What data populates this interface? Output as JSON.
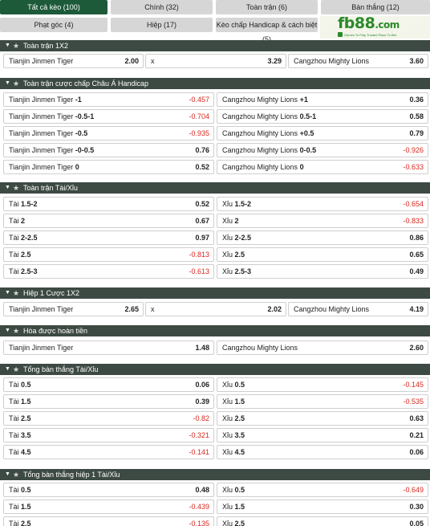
{
  "tabs": [
    {
      "label": "Tất cả kèo (100)",
      "active": true
    },
    {
      "label": "Chính (32)",
      "active": false
    },
    {
      "label": "Toàn trận (6)",
      "active": false
    },
    {
      "label": "Bàn thắng (12)",
      "active": false
    },
    {
      "label": "Phạt góc (4)",
      "active": false
    },
    {
      "label": "Hiệp (17)",
      "active": false
    },
    {
      "label": "Kèo chấp Handicap & cách biệt (5)",
      "active": false
    }
  ],
  "logo": {
    "brand": "fb88",
    "suffix": ".com",
    "tagline": "Games To Play    Trusted Place To Bet"
  },
  "sections": {
    "s1": {
      "title": "Toàn trận 1X2",
      "row": {
        "home": "Tianjin Jinmen Tiger",
        "home_odd": "2.00",
        "draw": "x",
        "draw_odd": "3.29",
        "away": "Cangzhou Mighty Lions",
        "away_odd": "3.60"
      }
    },
    "s2": {
      "title": "Toàn trận cược chấp Châu Á Handicap",
      "rows": [
        {
          "l_name": "Tianjin Jinmen Tiger",
          "l_hcp": "-1",
          "l_odd": "-0.457",
          "r_name": "Cangzhou Mighty Lions",
          "r_hcp": "+1",
          "r_odd": "0.36"
        },
        {
          "l_name": "Tianjin Jinmen Tiger",
          "l_hcp": "-0.5-1",
          "l_odd": "-0.704",
          "r_name": "Cangzhou Mighty Lions",
          "r_hcp": "0.5-1",
          "r_odd": "0.58"
        },
        {
          "l_name": "Tianjin Jinmen Tiger",
          "l_hcp": "-0.5",
          "l_odd": "-0.935",
          "r_name": "Cangzhou Mighty Lions",
          "r_hcp": "+0.5",
          "r_odd": "0.79"
        },
        {
          "l_name": "Tianjin Jinmen Tiger",
          "l_hcp": "-0-0.5",
          "l_odd": "0.76",
          "r_name": "Cangzhou Mighty Lions",
          "r_hcp": "0-0.5",
          "r_odd": "-0.926"
        },
        {
          "l_name": "Tianjin Jinmen Tiger",
          "l_hcp": "0",
          "l_odd": "0.52",
          "r_name": "Cangzhou Mighty Lions",
          "r_hcp": "0",
          "r_odd": "-0.633"
        }
      ]
    },
    "s3": {
      "title": "Toàn trận Tài/Xỉu",
      "rows": [
        {
          "l_name": "Tài",
          "l_hcp": "1.5-2",
          "l_odd": "0.52",
          "r_name": "Xỉu",
          "r_hcp": "1.5-2",
          "r_odd": "-0.654"
        },
        {
          "l_name": "Tài",
          "l_hcp": "2",
          "l_odd": "0.67",
          "r_name": "Xỉu",
          "r_hcp": "2",
          "r_odd": "-0.833"
        },
        {
          "l_name": "Tài",
          "l_hcp": "2-2.5",
          "l_odd": "0.97",
          "r_name": "Xỉu",
          "r_hcp": "2-2.5",
          "r_odd": "0.86"
        },
        {
          "l_name": "Tài",
          "l_hcp": "2.5",
          "l_odd": "-0.813",
          "r_name": "Xỉu",
          "r_hcp": "2.5",
          "r_odd": "0.65"
        },
        {
          "l_name": "Tài",
          "l_hcp": "2.5-3",
          "l_odd": "-0.613",
          "r_name": "Xỉu",
          "r_hcp": "2.5-3",
          "r_odd": "0.49"
        }
      ]
    },
    "s4": {
      "title": "Hiệp 1 Cược 1X2",
      "row": {
        "home": "Tianjin Jinmen Tiger",
        "home_odd": "2.65",
        "draw": "x",
        "draw_odd": "2.02",
        "away": "Cangzhou Mighty Lions",
        "away_odd": "4.19"
      }
    },
    "s5": {
      "title": "Hòa được hoàn tiền",
      "row": {
        "l_name": "Tianjin Jinmen Tiger",
        "l_odd": "1.48",
        "r_name": "Cangzhou Mighty Lions",
        "r_odd": "2.60"
      }
    },
    "s6": {
      "title": "Tổng bàn thắng Tài/Xỉu",
      "rows": [
        {
          "l_name": "Tài",
          "l_hcp": "0.5",
          "l_odd": "0.06",
          "r_name": "Xỉu",
          "r_hcp": "0.5",
          "r_odd": "-0.145"
        },
        {
          "l_name": "Tài",
          "l_hcp": "1.5",
          "l_odd": "0.39",
          "r_name": "Xỉu",
          "r_hcp": "1.5",
          "r_odd": "-0.535"
        },
        {
          "l_name": "Tài",
          "l_hcp": "2.5",
          "l_odd": "-0.82",
          "r_name": "Xỉu",
          "r_hcp": "2.5",
          "r_odd": "0.63"
        },
        {
          "l_name": "Tài",
          "l_hcp": "3.5",
          "l_odd": "-0.321",
          "r_name": "Xỉu",
          "r_hcp": "3.5",
          "r_odd": "0.21"
        },
        {
          "l_name": "Tài",
          "l_hcp": "4.5",
          "l_odd": "-0.141",
          "r_name": "Xỉu",
          "r_hcp": "4.5",
          "r_odd": "0.06"
        }
      ]
    },
    "s7": {
      "title": "Tổng bàn thắng hiệp 1 Tài/Xỉu",
      "rows": [
        {
          "l_name": "Tài",
          "l_hcp": "0.5",
          "l_odd": "0.48",
          "r_name": "Xỉu",
          "r_hcp": "0.5",
          "r_odd": "-0.649"
        },
        {
          "l_name": "Tài",
          "l_hcp": "1.5",
          "l_odd": "-0.439",
          "r_name": "Xỉu",
          "r_hcp": "1.5",
          "r_odd": "0.30"
        },
        {
          "l_name": "Tài",
          "l_hcp": "2.5",
          "l_odd": "-0.135",
          "r_name": "Xỉu",
          "r_hcp": "2.5",
          "r_odd": "0.05"
        }
      ]
    }
  },
  "colors": {
    "header_bg": "#3d4a43",
    "active_tab": "#1c5a3a",
    "negative_odd": "#d8281e"
  }
}
